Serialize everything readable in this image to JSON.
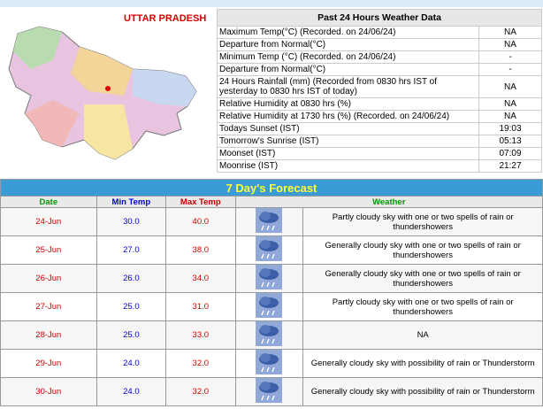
{
  "map": {
    "title": "UTTAR PRADESH"
  },
  "past24": {
    "title": "Past 24 Hours Weather Data",
    "rows": [
      [
        "Maximum Temp(°C) (Recorded. on 24/06/24)",
        "NA"
      ],
      [
        "Departure from Normal(°C)",
        "NA"
      ],
      [
        "Minimum Temp (°C) (Recorded. on 24/06/24)",
        "-"
      ],
      [
        "Departure from Normal(°C)",
        "-"
      ],
      [
        "24 Hours Rainfall (mm) (Recorded from 0830 hrs IST of yesterday to 0830 hrs IST of today)",
        "NA"
      ],
      [
        "Relative Humidity at 0830 hrs (%)",
        "NA"
      ],
      [
        "Relative Humidity at 1730 hrs (%) (Recorded. on 24/06/24)",
        "NA"
      ],
      [
        "Todays Sunset (IST)",
        "19:03"
      ],
      [
        "Tomorrow's Sunrise (IST)",
        "05:13"
      ],
      [
        "Moonset (IST)",
        "07:09"
      ],
      [
        "Moonrise (IST)",
        "21:27"
      ]
    ]
  },
  "forecast": {
    "title": "7 Day's Forecast",
    "columns": [
      "Date",
      "Min Temp",
      "Max Temp",
      "Weather"
    ],
    "rows": [
      [
        "24-Jun",
        "30.0",
        "40.0",
        "Partly cloudy sky with one or two spells of rain or thundershowers"
      ],
      [
        "25-Jun",
        "27.0",
        "38.0",
        "Generally cloudy sky with one or two spells of rain or thundershowers"
      ],
      [
        "26-Jun",
        "26.0",
        "34.0",
        "Generally cloudy sky with one or two spells of rain or thundershowers"
      ],
      [
        "27-Jun",
        "25.0",
        "31.0",
        "Partly cloudy sky with one or two spells of rain or thundershowers"
      ],
      [
        "28-Jun",
        "25.0",
        "33.0",
        "NA"
      ],
      [
        "29-Jun",
        "24.0",
        "32.0",
        "Generally cloudy sky with possibility of rain or Thunderstorm"
      ],
      [
        "30-Jun",
        "24.0",
        "32.0",
        "Generally cloudy sky with possibility of rain or Thunderstorm"
      ]
    ]
  }
}
